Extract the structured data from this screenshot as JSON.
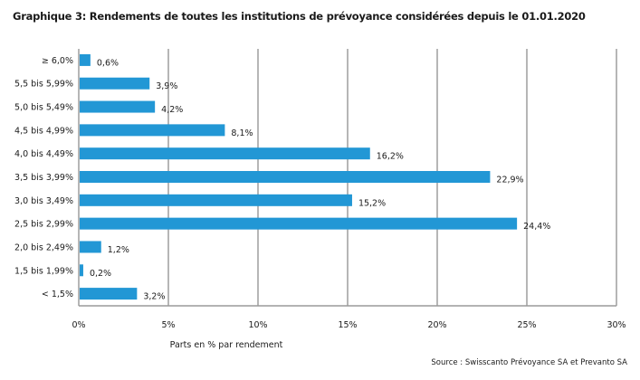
{
  "chart_data": {
    "type": "bar",
    "orientation": "horizontal",
    "title": "Graphique 3: Rendements de toutes les institutions de prévoyance considérées depuis le 01.01.2020",
    "categories": [
      "≥ 6,0%",
      "5,5 bis 5,99%",
      "5,0 bis 5,49%",
      "4,5 bis 4,99%",
      "4,0 bis 4,49%",
      "3,5 bis 3,99%",
      "3,0 bis 3,49%",
      "2,5 bis 2,99%",
      "2,0 bis 2,49%",
      "1,5 bis 1,99%",
      "< 1,5%"
    ],
    "values": [
      0.6,
      3.9,
      4.2,
      8.1,
      16.2,
      22.9,
      15.2,
      24.4,
      1.2,
      0.2,
      3.2
    ],
    "value_labels": [
      "0,6%",
      "3,9%",
      "4,2%",
      "8,1%",
      "16,2%",
      "22,9%",
      "15,2%",
      "24,4%",
      "1,2%",
      "0,2%",
      "3,2%"
    ],
    "xlabel": "Parts en % par rendement",
    "ylabel": "",
    "xlim": [
      0,
      30
    ],
    "xticks": [
      0,
      5,
      10,
      15,
      20,
      25,
      30
    ],
    "xtick_labels": [
      "0%",
      "5%",
      "10%",
      "15%",
      "20%",
      "25%",
      "30%"
    ],
    "grid": "vertical",
    "legend": "none",
    "bar_color": "#2297d5",
    "source": "Source : Swisscanto Prévoyance SA et Prevanto SA"
  }
}
